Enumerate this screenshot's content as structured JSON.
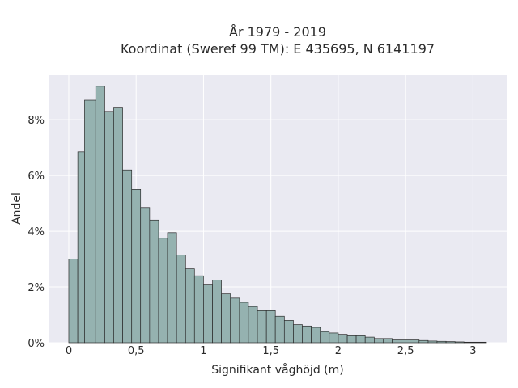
{
  "chart_data": {
    "type": "bar",
    "title_lines": [
      "År 1979 - 2019",
      "Koordinat (Sweref 99 TM): E 435695, N 6141197"
    ],
    "xlabel": "Signifikant våghöjd (m)",
    "ylabel": "Andel",
    "bin_width": 0.1,
    "bin_starts": [
      0.0,
      0.067,
      0.117,
      0.2,
      0.267,
      0.333,
      0.4,
      0.467,
      0.533,
      0.6,
      0.667,
      0.733,
      0.8,
      0.867,
      0.933,
      1.0,
      1.067,
      1.133,
      1.2,
      1.267,
      1.333,
      1.4,
      1.467,
      1.533,
      1.6,
      1.667,
      1.733,
      1.8,
      1.867,
      1.933,
      2.0,
      2.067,
      2.133,
      2.2,
      2.267,
      2.333,
      2.4,
      2.467,
      2.533,
      2.6,
      2.667,
      2.733,
      2.8,
      2.867,
      2.933,
      3.0
    ],
    "bin_ends": [
      0.067,
      0.117,
      0.2,
      0.267,
      0.333,
      0.4,
      0.467,
      0.533,
      0.6,
      0.667,
      0.733,
      0.8,
      0.867,
      0.933,
      1.0,
      1.067,
      1.133,
      1.2,
      1.267,
      1.333,
      1.4,
      1.467,
      1.533,
      1.6,
      1.667,
      1.733,
      1.8,
      1.867,
      1.933,
      2.0,
      2.067,
      2.133,
      2.2,
      2.267,
      2.333,
      2.4,
      2.467,
      2.533,
      2.6,
      2.667,
      2.733,
      2.8,
      2.867,
      2.933,
      3.0,
      3.1
    ],
    "values": [
      3.0,
      6.85,
      8.7,
      9.2,
      8.3,
      8.45,
      6.2,
      5.5,
      4.85,
      4.4,
      3.75,
      3.95,
      3.15,
      2.65,
      2.4,
      2.1,
      2.25,
      1.75,
      1.6,
      1.45,
      1.3,
      1.15,
      1.15,
      0.95,
      0.8,
      0.65,
      0.6,
      0.55,
      0.4,
      0.35,
      0.3,
      0.25,
      0.25,
      0.2,
      0.15,
      0.15,
      0.1,
      0.1,
      0.1,
      0.08,
      0.06,
      0.05,
      0.04,
      0.03,
      0.02,
      0.02
    ],
    "xlim": [
      -0.15,
      3.25
    ],
    "ylim": [
      0,
      9.6
    ],
    "x_ticks": [
      0,
      0.5,
      1,
      1.5,
      2,
      2.5,
      3
    ],
    "x_tick_labels": [
      "0",
      "0,5",
      "1",
      "1,5",
      "2",
      "2,5",
      "3"
    ],
    "y_ticks": [
      0,
      2,
      4,
      6,
      8
    ],
    "y_tick_labels": [
      "0%",
      "2%",
      "4%",
      "6%",
      "8%"
    ],
    "grid": true,
    "colors": {
      "bar_fill": "#95b2b0",
      "bar_stroke": "#2b2b2b",
      "plot_bg": "#eaeaf2",
      "grid": "#ffffff"
    }
  }
}
